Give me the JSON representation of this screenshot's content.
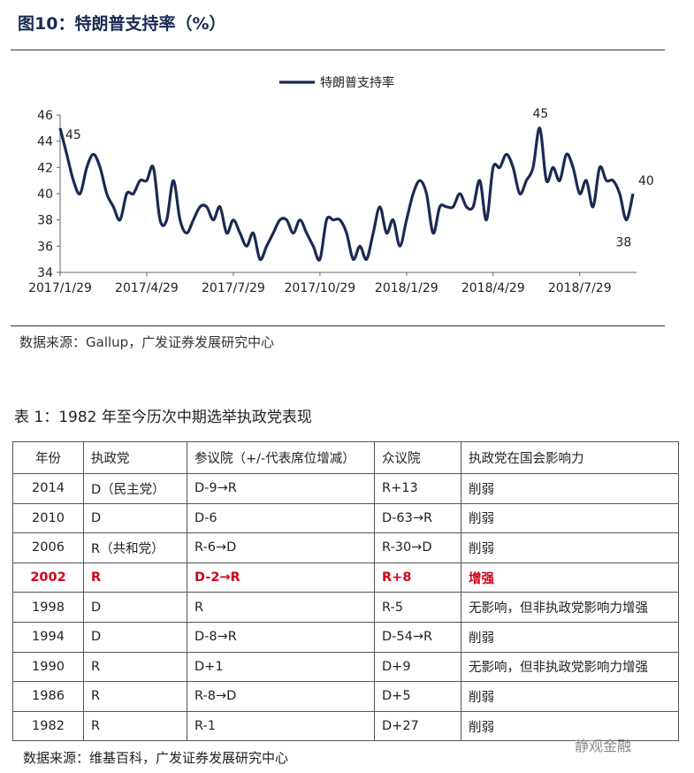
{
  "figure": {
    "title": "图10：特朗普支持率（%）",
    "source": "数据来源：Gallup，广发证券发展研究中心"
  },
  "chart_data": {
    "type": "line",
    "title": "",
    "legend": "top-center",
    "series": [
      {
        "name": "特朗普支持率",
        "color": "#1a2a52",
        "values": [
          45,
          43,
          41,
          40,
          42,
          43,
          42,
          40,
          39,
          38,
          40,
          40,
          41,
          41,
          42,
          38,
          38,
          41,
          38,
          37,
          38,
          39,
          39,
          38,
          39,
          37,
          38,
          37,
          36,
          37,
          35,
          36,
          37,
          38,
          38,
          37,
          38,
          37,
          36,
          35,
          38,
          38,
          38,
          37,
          35,
          36,
          35,
          37,
          39,
          37,
          38,
          36,
          38,
          40,
          41,
          40,
          37,
          39,
          39,
          39,
          40,
          39,
          39,
          41,
          38,
          42,
          42,
          43,
          42,
          40,
          41,
          42,
          45,
          41,
          42,
          41,
          43,
          42,
          40,
          41,
          39,
          42,
          41,
          41,
          40,
          38,
          40
        ]
      }
    ],
    "x_start": "2017/1/29",
    "x_end": "2018/9/23",
    "xtick_labels": [
      "2017/1/29",
      "2017/4/29",
      "2017/7/29",
      "2017/10/29",
      "2018/1/29",
      "2018/4/29",
      "2018/7/29"
    ],
    "ylim": [
      34,
      46
    ],
    "yticks": [
      34,
      36,
      38,
      40,
      42,
      44,
      46
    ],
    "annotations": [
      {
        "index": 0,
        "label": "45"
      },
      {
        "index": 72,
        "label": "45"
      },
      {
        "index": 85,
        "label": "38"
      },
      {
        "index": 86,
        "label": "40"
      }
    ]
  },
  "table": {
    "title": "表 1：1982 年至今历次中期选举执政党表现",
    "headers": [
      "年份",
      "执政党",
      "参议院（+/-代表席位增减）",
      "众议院",
      "执政党在国会影响力"
    ],
    "rows": [
      [
        "2014",
        "D（民主党）",
        "D-9→R",
        "R+13",
        "削弱"
      ],
      [
        "2010",
        "D",
        "D-6",
        "D-63→R",
        "削弱"
      ],
      [
        "2006",
        "R（共和党）",
        "R-6→D",
        "R-30→D",
        "削弱"
      ],
      [
        "2002",
        "R",
        "D-2→R",
        "R+8",
        "增强"
      ],
      [
        "1998",
        "D",
        "R",
        "R-5",
        "无影响，但非执政党影响力增强"
      ],
      [
        "1994",
        "D",
        "D-8→R",
        "D-54→R",
        "削弱"
      ],
      [
        "1990",
        "R",
        "D+1",
        "D+9",
        "无影响，但非执政党影响力增强"
      ],
      [
        "1986",
        "R",
        "R-8→D",
        "D+5",
        "削弱"
      ],
      [
        "1982",
        "R",
        "R-1",
        "D+27",
        "削弱"
      ]
    ],
    "highlight_row": 3,
    "highlight_color": "#d0021b",
    "source": "数据来源：维基百科，广发证券发展研究中心"
  },
  "watermark": "静观金融"
}
